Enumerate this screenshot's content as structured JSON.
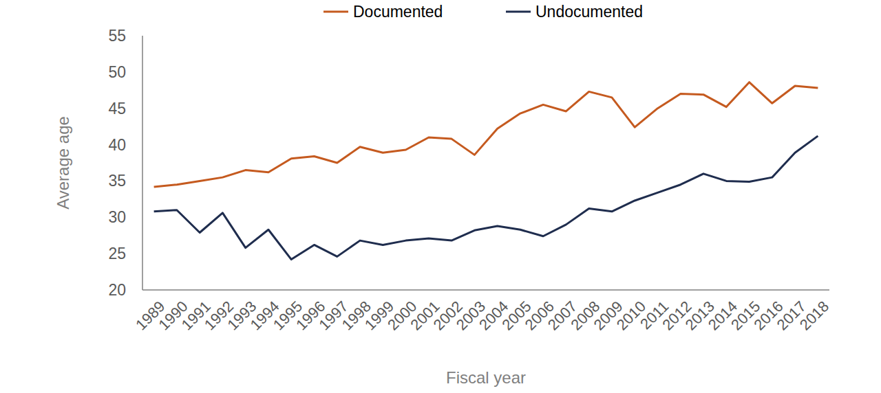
{
  "chart_data": {
    "type": "line",
    "x_label": "Fiscal year",
    "y_label": "Average age",
    "categories": [
      "1989",
      "1990",
      "1991",
      "1992",
      "1993",
      "1994",
      "1995",
      "1996",
      "1997",
      "1998",
      "1999",
      "2000",
      "2001",
      "2002",
      "2003",
      "2004",
      "2005",
      "2006",
      "2007",
      "2008",
      "2009",
      "2010",
      "2011",
      "2012",
      "2013",
      "2014",
      "2015",
      "2016",
      "2017",
      "2018"
    ],
    "series": [
      {
        "name": "Documented",
        "color": "#c55a1f",
        "values": [
          34.2,
          34.5,
          35.0,
          35.5,
          36.5,
          36.2,
          38.1,
          38.4,
          37.5,
          39.7,
          38.9,
          39.3,
          41.0,
          40.8,
          38.6,
          42.2,
          44.3,
          45.5,
          44.6,
          47.3,
          46.5,
          42.4,
          45.0,
          47.0,
          46.9,
          45.2,
          48.6,
          45.7,
          48.1,
          47.8
        ]
      },
      {
        "name": "Undocumented",
        "color": "#1f2d4e",
        "values": [
          30.8,
          31.0,
          27.9,
          30.6,
          25.8,
          28.3,
          24.2,
          26.2,
          24.6,
          26.8,
          26.2,
          26.8,
          27.1,
          26.8,
          28.2,
          28.8,
          28.3,
          27.4,
          29.0,
          31.2,
          30.8,
          32.3,
          33.4,
          34.5,
          36.0,
          35.0,
          34.9,
          35.5,
          38.9,
          41.2
        ]
      }
    ],
    "ylim": [
      20,
      55
    ],
    "yticks": [
      20,
      25,
      30,
      35,
      40,
      45,
      50,
      55
    ],
    "grid": false,
    "legend": "top"
  }
}
